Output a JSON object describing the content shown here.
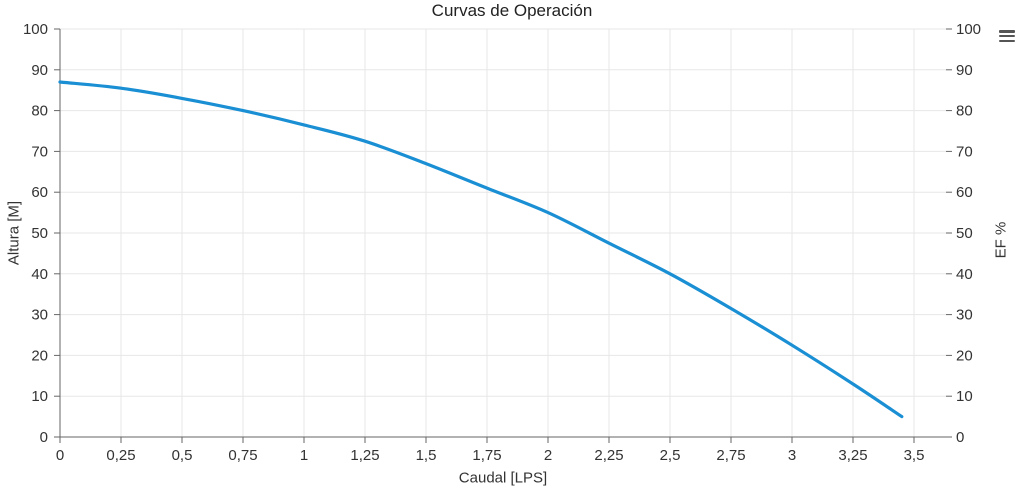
{
  "page": {
    "background": "#ffffff"
  },
  "header": {
    "menu_icon": "hamburger-menu-icon"
  },
  "chart_data": {
    "type": "line",
    "title": "Curvas de Operación",
    "xlabel": "Caudal [LPS]",
    "ylabel_left": "Altura [M]",
    "ylabel_right": "EF %",
    "xlim": [
      0,
      3.5
    ],
    "ylim": [
      0,
      100
    ],
    "grid": true,
    "legend": "none",
    "decimal_separator": ",",
    "x_tick_values": [
      0,
      0.25,
      0.5,
      0.75,
      1,
      1.25,
      1.5,
      1.75,
      2,
      2.25,
      2.5,
      2.75,
      3,
      3.25,
      3.5
    ],
    "x_tick_labels": [
      "0",
      "0,25",
      "0,5",
      "0,75",
      "1",
      "1,25",
      "1,5",
      "1,75",
      "2",
      "2,25",
      "2,5",
      "2,75",
      "3",
      "3,25",
      "3,5"
    ],
    "y_tick_values": [
      0,
      10,
      20,
      30,
      40,
      50,
      60,
      70,
      80,
      90,
      100
    ],
    "y_tick_labels_left": [
      "0",
      "10",
      "20",
      "30",
      "40",
      "50",
      "60",
      "70",
      "80",
      "90",
      "100"
    ],
    "y_tick_labels_right": [
      "0",
      "10",
      "20",
      "30",
      "40",
      "50",
      "60",
      "70",
      "80",
      "90",
      "100"
    ],
    "series": [
      {
        "name": "Altura",
        "color": "#1a8fd4",
        "points": [
          [
            0,
            87
          ],
          [
            0.25,
            85.5
          ],
          [
            0.5,
            83
          ],
          [
            0.75,
            80
          ],
          [
            1,
            76.5
          ],
          [
            1.25,
            72.5
          ],
          [
            1.5,
            67
          ],
          [
            1.75,
            61
          ],
          [
            2,
            55
          ],
          [
            2.25,
            47.5
          ],
          [
            2.5,
            40
          ],
          [
            2.75,
            31.5
          ],
          [
            3,
            22.5
          ],
          [
            3.25,
            13
          ],
          [
            3.45,
            5
          ]
        ]
      }
    ],
    "colors": {
      "line": "#1a8fd4",
      "grid": "#e7e7e7",
      "axis": "#666666",
      "text": "#333333"
    }
  }
}
